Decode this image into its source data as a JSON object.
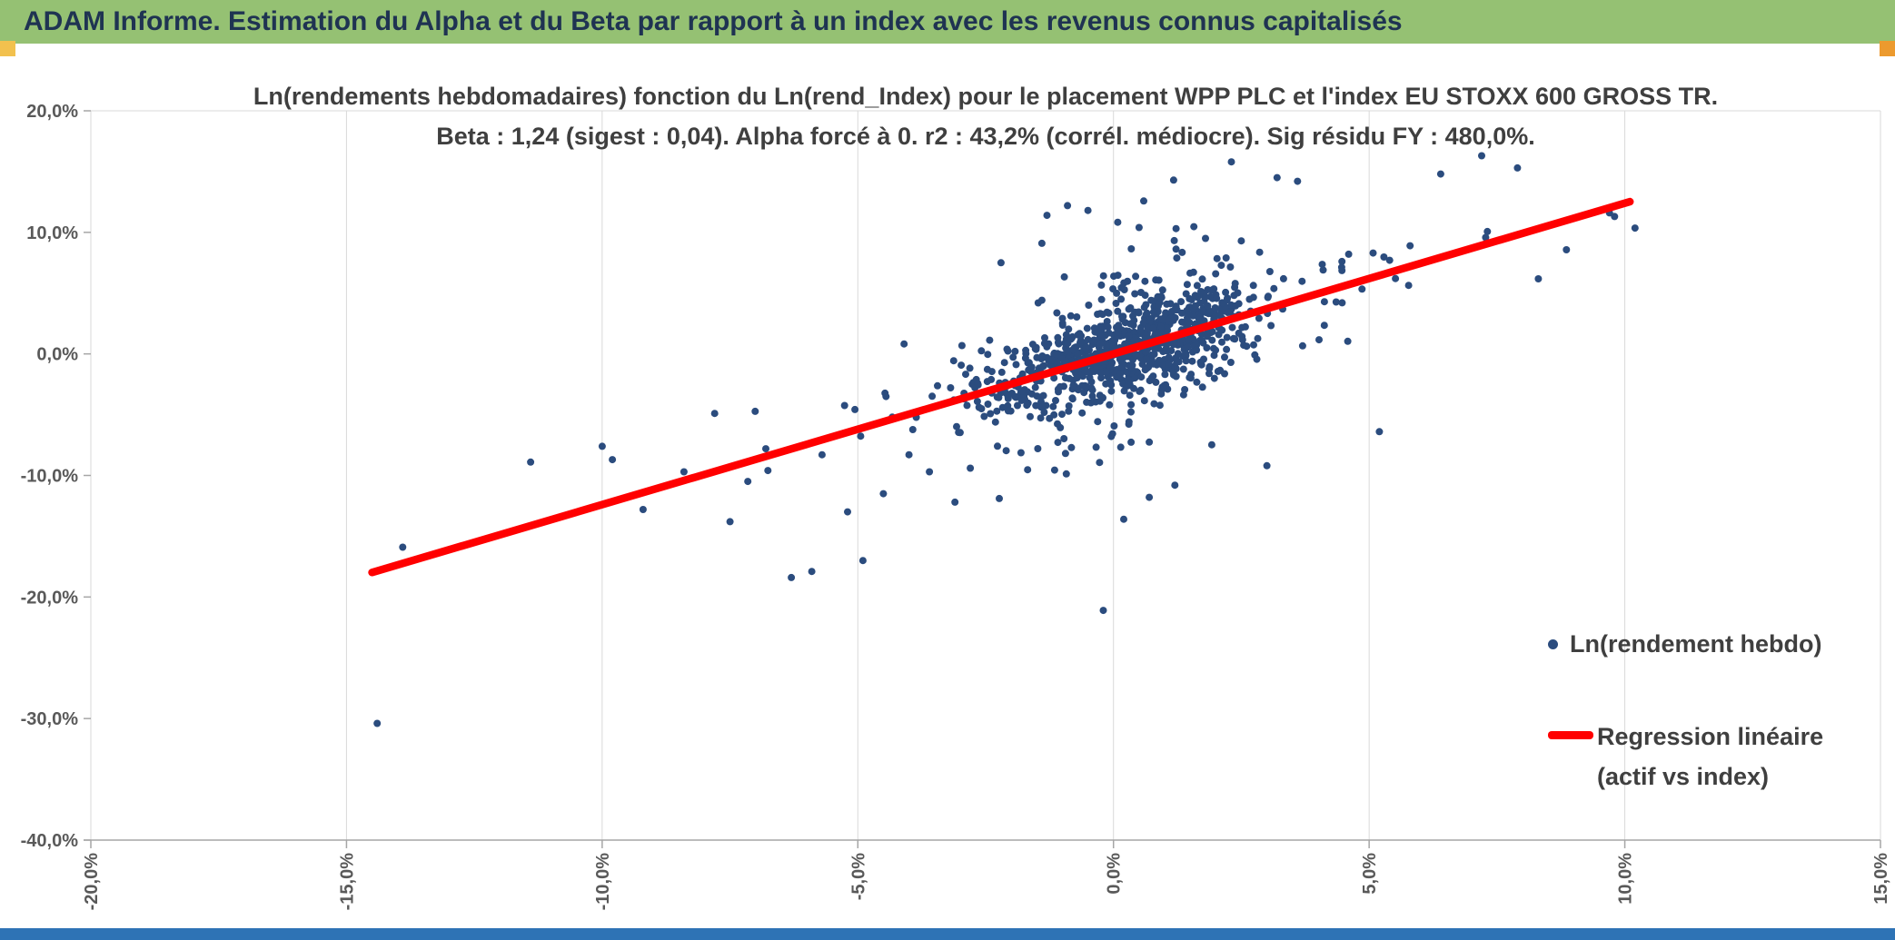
{
  "header": {
    "title": "ADAM Informe. Estimation du Alpha et du Beta par rapport à un index avec les revenus connus capitalisés",
    "bg_color": "#95C173",
    "text_color": "#1F3352"
  },
  "accents": {
    "left_square_color": "#F2C14E",
    "right_square_color": "#EC9A2E",
    "bottom_bar_color": "#2E73B5"
  },
  "chart_data": {
    "type": "scatter",
    "title_line1": "Ln(rendements hebdomadaires) fonction du Ln(rend_Index) pour le placement WPP PLC et l'index EU STOXX 600 GROSS TR.",
    "title_line2": "Beta : 1,24 (sigest : 0,04). Alpha forcé à 0. r2 : 43,2% (corrél. médiocre). Sig résidu FY : 480,0%.",
    "asset": "WPP PLC",
    "index": "EU STOXX 600 GROSS TR",
    "stats": {
      "beta": "1,24",
      "sigest": "0,04",
      "alpha_force": "0",
      "r2": "43,2%",
      "correlation_quality": "médiocre",
      "sig_residu_fy": "480,0%"
    },
    "xlim": [
      -0.2,
      0.15
    ],
    "ylim": [
      -0.4,
      0.2
    ],
    "x_ticks": [
      "-20,0%",
      "-15,0%",
      "-10,0%",
      "-5,0%",
      "0,0%",
      "5,0%",
      "10,0%",
      "15,0%"
    ],
    "x_tick_values": [
      -0.2,
      -0.15,
      -0.1,
      -0.05,
      0,
      0.05,
      0.1,
      0.15
    ],
    "y_ticks": [
      "20,0%",
      "10,0%",
      "0,0%",
      "-10,0%",
      "-20,0%",
      "-30,0%",
      "-40,0%"
    ],
    "y_tick_values": [
      0.2,
      0.1,
      0,
      -0.1,
      -0.2,
      -0.3,
      -0.4
    ],
    "grid": "vertical-only",
    "colors": {
      "grid": "#D9D9D9",
      "axis": "#A6A6A6",
      "tick_text": "#595959"
    },
    "point_color": "#2B4C7E",
    "point_radius": 4,
    "regression_line": {
      "color": "#FF0000",
      "width": 8.5,
      "beta": 1.24,
      "alpha": 0,
      "x_start": -0.145,
      "x_end": 0.101
    },
    "legend": [
      {
        "label": "Ln(rendement hebdo)",
        "marker": "dot"
      },
      {
        "label": "Regression linéaire",
        "label_line2": "(actif vs index)",
        "marker": "line"
      }
    ],
    "scatter_cluster": {
      "n": 1000,
      "seed": 20240717,
      "x_mean": 0.003,
      "x_sd_core": 0.0125,
      "x_sd_tail": 0.031,
      "tail_fraction": 0.16,
      "beta": 1.24,
      "noise_sd_core": 0.019,
      "noise_sd_tail": 0.04,
      "noise_tail_fraction": 0.18,
      "x_clamp": [
        -0.103,
        0.102
      ],
      "y_clamp": [
        -0.205,
        0.158
      ]
    },
    "outlier_points": [
      [
        -0.144,
        -0.304
      ],
      [
        -0.139,
        -0.159
      ],
      [
        -0.114,
        -0.089
      ],
      [
        -0.1,
        -0.076
      ],
      [
        -0.098,
        -0.087
      ],
      [
        -0.092,
        -0.128
      ],
      [
        -0.084,
        -0.097
      ],
      [
        -0.075,
        -0.138
      ],
      [
        -0.078,
        -0.049
      ],
      [
        -0.063,
        -0.184
      ],
      [
        -0.059,
        -0.179
      ],
      [
        -0.049,
        -0.17
      ],
      [
        -0.052,
        -0.13
      ],
      [
        -0.036,
        -0.097
      ],
      [
        -0.028,
        -0.094
      ],
      [
        -0.002,
        -0.211
      ],
      [
        0.002,
        -0.136
      ],
      [
        0.012,
        -0.108
      ],
      [
        0.052,
        -0.064
      ],
      [
        -0.014,
        0.091
      ],
      [
        -0.013,
        0.114
      ],
      [
        -0.009,
        0.122
      ],
      [
        0.005,
        0.104
      ],
      [
        0.032,
        0.145
      ],
      [
        0.036,
        0.142
      ],
      [
        0.046,
        0.082
      ],
      [
        0.054,
        0.077
      ],
      [
        0.064,
        0.148
      ],
      [
        0.072,
        0.163
      ],
      [
        0.079,
        0.153
      ],
      [
        0.097,
        0.116
      ],
      [
        0.098,
        0.113
      ],
      [
        0.058,
        0.089
      ],
      [
        -0.022,
        0.075
      ],
      [
        0.025,
        0.093
      ],
      [
        -0.045,
        -0.115
      ],
      [
        -0.057,
        -0.083
      ],
      [
        -0.068,
        -0.078
      ],
      [
        0.041,
        0.069
      ],
      [
        0.03,
        -0.092
      ],
      [
        -0.031,
        -0.122
      ],
      [
        -0.04,
        -0.083
      ],
      [
        0.018,
        0.095
      ],
      [
        0.007,
        -0.118
      ],
      [
        -0.005,
        0.118
      ]
    ]
  }
}
